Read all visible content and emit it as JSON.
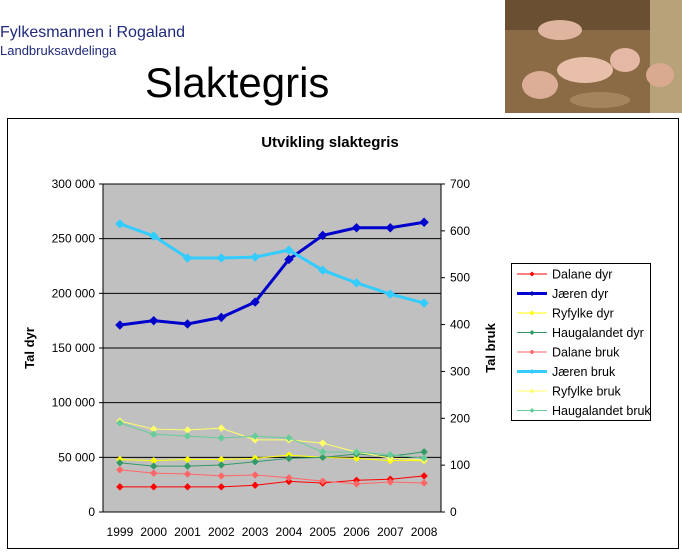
{
  "header": {
    "org": "Fylkesmannen i Rogaland",
    "department": "Landbruksavdelinga",
    "title": "Slaktegris"
  },
  "chart_data": {
    "type": "line",
    "title": "Utvikling slaktegris",
    "ylabel": "Tal dyr",
    "y2label": "Tal bruk",
    "categories": [
      "1999",
      "2000",
      "2001",
      "2002",
      "2003",
      "2004",
      "2005",
      "2006",
      "2007",
      "2008"
    ],
    "ylim": [
      0,
      300000
    ],
    "yticks": [
      0,
      {
        "value": 50000,
        "label": "50 000"
      },
      {
        "value": 100000,
        "label": "100 000"
      },
      {
        "value": 150000,
        "label": "150 000"
      },
      {
        "value": 200000,
        "label": "200 000"
      },
      {
        "value": 250000,
        "label": "250 000"
      },
      {
        "value": 300000,
        "label": "300 000"
      }
    ],
    "y2lim": [
      0,
      700
    ],
    "y2ticks": [
      0,
      100,
      200,
      300,
      400,
      500,
      600,
      700
    ],
    "grid": true,
    "legend": "right",
    "series": [
      {
        "name": "Dalane dyr",
        "color": "#ff0000",
        "values": [
          23000,
          23000,
          23000,
          23000,
          24500,
          28000,
          26500,
          29000,
          30000,
          33000
        ]
      },
      {
        "name": "Jæren dyr",
        "color": "#0000cc",
        "width": 3,
        "values": [
          171000,
          175000,
          172000,
          178000,
          192000,
          231000,
          253000,
          260000,
          260000,
          265000
        ]
      },
      {
        "name": "Ryfylke dyr",
        "color": "#ffff00",
        "values": [
          48000,
          47000,
          48000,
          48000,
          49000,
          52000,
          50000,
          49000,
          47000,
          47000
        ]
      },
      {
        "name": "Haugalandet dyr",
        "color": "#339966",
        "values": [
          45000,
          42000,
          42000,
          43000,
          46000,
          49000,
          50000,
          53000,
          51000,
          55000
        ]
      },
      {
        "name": "Dalane bruk",
        "color": "#ff6666",
        "axis": "y2",
        "values": [
          90,
          83,
          81,
          77,
          79,
          73,
          66,
          60,
          64,
          62
        ]
      },
      {
        "name": "Jæren bruk",
        "color": "#33ccff",
        "width": 3,
        "axis": "y2",
        "values": [
          615,
          589,
          542,
          542,
          544,
          559,
          516,
          489,
          465,
          446
        ]
      },
      {
        "name": "Ryfylke bruk",
        "color": "#ffff66",
        "axis": "y2",
        "values": [
          194,
          177,
          175,
          179,
          154,
          154,
          147,
          128,
          115,
          111
        ]
      },
      {
        "name": "Haugalandet bruk",
        "color": "#66cc99",
        "axis": "y2",
        "values": [
          190,
          166,
          162,
          158,
          162,
          158,
          128,
          128,
          122,
          115
        ]
      }
    ]
  }
}
